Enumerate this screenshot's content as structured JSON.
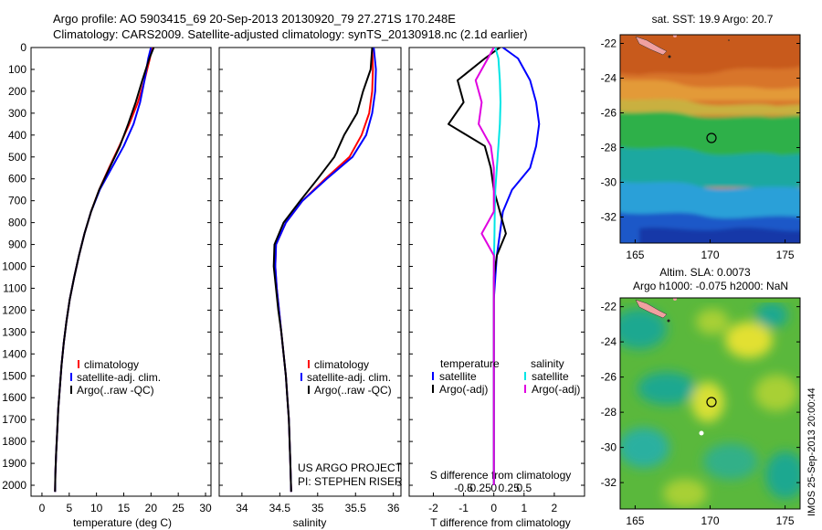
{
  "title": {
    "line1": "Argo profile: AO 5903415_69 20-Sep-2013 20130920_79 27.271S 170.248E",
    "line2": "Climatology: CARS2009. Satellite-adjusted climatology: synTS_20130918.nc (2.1d earlier)"
  },
  "colors": {
    "climatology": "#ff0000",
    "satellite": "#0000ff",
    "argo": "#000000",
    "sal_satellite": "#00e5e5",
    "sal_argo": "#e000e0"
  },
  "depth_axis": {
    "ticks": [
      "0",
      "100",
      "200",
      "300",
      "400",
      "500",
      "600",
      "700",
      "800",
      "900",
      "1000",
      "1100",
      "1200",
      "1300",
      "1400",
      "1500",
      "1600",
      "1700",
      "1800",
      "1900",
      "2000"
    ],
    "ylim": [
      0,
      2050
    ]
  },
  "panels": {
    "temperature": {
      "xlabel": "temperature (deg C)",
      "xticks": [
        "0",
        "5",
        "10",
        "15",
        "20",
        "25",
        "30"
      ],
      "legend": [
        "climatology",
        "satellite-adj. clim.",
        "Argo(..raw -QC)"
      ]
    },
    "salinity": {
      "xlabel": "salinity",
      "xticks": [
        "34",
        "34.5",
        "35",
        "35.5",
        "36"
      ],
      "legend": [
        "climatology",
        "satellite-adj. clim.",
        "Argo(..raw -QC)"
      ],
      "credit1": "US ARGO PROJECT",
      "credit2": "PI: STEPHEN RISER"
    },
    "difference": {
      "xlabel": "T difference from climatology",
      "top_axis_label": "S difference from climatology",
      "xticks": [
        "-2",
        "-1",
        "0",
        "1",
        "2"
      ],
      "top_ticks": [
        "-0.5",
        "-0.25",
        "0",
        "0.25",
        "0.5"
      ],
      "legend_t_title": "temperature",
      "legend_s_title": "salinity",
      "legend_items": [
        "satellite",
        "Argo(-adj)",
        "satellite",
        "Argo(-adj)"
      ]
    }
  },
  "maps": {
    "sst": {
      "title": "sat. SST: 19.9 Argo: 20.7",
      "xticks": [
        "165",
        "170",
        "175"
      ],
      "yticks": [
        "-22",
        "-24",
        "-26",
        "-28",
        "-30",
        "-32"
      ]
    },
    "sla": {
      "title1": "Altim. SLA: 0.0073",
      "title2": "Argo h1000: -0.075 h2000: NaN",
      "xticks": [
        "165",
        "170",
        "175"
      ],
      "yticks": [
        "-22",
        "-24",
        "-26",
        "-28",
        "-30",
        "-32"
      ]
    },
    "stamp": "IMOS 25-Sep-2013 20:00:44"
  },
  "chart_data": [
    {
      "type": "line",
      "title": "",
      "xlabel": "temperature (deg C)",
      "ylabel": "",
      "xlim": [
        -2,
        31
      ],
      "ylim": [
        2050,
        0
      ],
      "x_ticks": [
        0,
        5,
        10,
        15,
        20,
        25,
        30
      ],
      "y_ticks": [
        0,
        100,
        200,
        300,
        400,
        500,
        600,
        700,
        800,
        900,
        1000,
        1100,
        1200,
        1300,
        1400,
        1500,
        1600,
        1700,
        1800,
        1900,
        2000
      ],
      "series": [
        {
          "name": "climatology",
          "x": [
            20.2,
            19.8,
            18.8,
            17.6,
            16.0,
            14.2,
            12.3,
            10.5,
            9.0,
            7.8,
            6.8,
            5.9,
            5.1,
            4.5,
            4.0,
            3.6,
            3.3,
            3.0,
            2.8,
            2.6,
            2.45,
            2.4
          ],
          "y": [
            0,
            50,
            150,
            250,
            350,
            450,
            550,
            650,
            750,
            850,
            950,
            1050,
            1150,
            1250,
            1350,
            1450,
            1550,
            1650,
            1750,
            1850,
            1950,
            2030
          ]
        },
        {
          "name": "satellite-adj. clim.",
          "x": [
            20.0,
            19.5,
            18.8,
            18.0,
            16.8,
            15.0,
            12.8,
            10.6,
            9.0,
            7.8,
            6.8,
            5.9,
            5.1,
            4.5,
            4.0,
            3.6,
            3.3,
            3.0,
            2.8,
            2.6,
            2.45,
            2.4
          ],
          "y": [
            0,
            50,
            150,
            250,
            350,
            450,
            550,
            650,
            750,
            850,
            950,
            1050,
            1150,
            1250,
            1350,
            1450,
            1550,
            1650,
            1750,
            1850,
            1950,
            2030
          ]
        },
        {
          "name": "Argo(..raw -QC)",
          "x": [
            20.5,
            19.7,
            18.4,
            17.2,
            15.8,
            14.3,
            12.4,
            10.5,
            9.0,
            7.8,
            6.8,
            5.9,
            5.1,
            4.5,
            4.0,
            3.6,
            3.3,
            3.0,
            2.8,
            2.6,
            2.45,
            2.4
          ],
          "y": [
            0,
            50,
            150,
            250,
            350,
            450,
            550,
            650,
            750,
            850,
            950,
            1050,
            1150,
            1250,
            1350,
            1450,
            1550,
            1650,
            1750,
            1850,
            1950,
            2030
          ]
        }
      ]
    },
    {
      "type": "line",
      "title": "",
      "xlabel": "salinity",
      "ylabel": "",
      "xlim": [
        33.7,
        36.1
      ],
      "ylim": [
        2050,
        0
      ],
      "x_ticks": [
        34,
        34.5,
        35,
        35.5,
        36
      ],
      "series": [
        {
          "name": "climatology",
          "x": [
            35.72,
            35.73,
            35.72,
            35.68,
            35.58,
            35.42,
            35.1,
            34.8,
            34.58,
            34.45,
            34.44,
            34.46,
            34.49,
            34.52,
            34.55,
            34.58,
            34.6,
            34.62,
            34.63,
            34.64,
            34.65
          ],
          "y": [
            0,
            100,
            200,
            300,
            400,
            500,
            600,
            700,
            800,
            900,
            1000,
            1100,
            1200,
            1300,
            1400,
            1500,
            1600,
            1700,
            1800,
            1900,
            2030
          ]
        },
        {
          "name": "satellite-adj. clim.",
          "x": [
            35.74,
            35.77,
            35.76,
            35.72,
            35.64,
            35.46,
            35.12,
            34.8,
            34.58,
            34.45,
            34.44,
            34.46,
            34.49,
            34.52,
            34.55,
            34.58,
            34.6,
            34.62,
            34.63,
            34.64,
            34.65
          ],
          "y": [
            0,
            100,
            200,
            300,
            400,
            500,
            600,
            700,
            800,
            900,
            1000,
            1100,
            1200,
            1300,
            1400,
            1500,
            1600,
            1700,
            1800,
            1900,
            2030
          ]
        },
        {
          "name": "Argo(..raw -QC)",
          "x": [
            35.72,
            35.7,
            35.6,
            35.52,
            35.35,
            35.22,
            35.0,
            34.77,
            34.55,
            34.43,
            34.42,
            34.45,
            34.48,
            34.52,
            34.55,
            34.58,
            34.6,
            34.62,
            34.63,
            34.64,
            34.65
          ],
          "y": [
            0,
            100,
            200,
            300,
            400,
            500,
            600,
            700,
            800,
            900,
            1000,
            1100,
            1200,
            1300,
            1400,
            1500,
            1600,
            1700,
            1800,
            1900,
            2030
          ]
        }
      ]
    },
    {
      "type": "line",
      "title": "",
      "xlabel": "T difference from climatology",
      "ylabel": "",
      "xlim": [
        -2.8,
        3.0
      ],
      "ylim": [
        2050,
        0
      ],
      "x_ticks": [
        -2,
        -1,
        0,
        1,
        2
      ],
      "series": [
        {
          "name": "satellite",
          "x": [
            0.3,
            0.8,
            1.2,
            1.4,
            1.5,
            1.4,
            1.2,
            0.6,
            0.3,
            0.2,
            0.1,
            0.05,
            0.0,
            0.0,
            0.0,
            0.0,
            0.0,
            0.0,
            0.0,
            0.0,
            0.0
          ],
          "y": [
            0,
            50,
            150,
            250,
            350,
            450,
            550,
            650,
            750,
            850,
            950,
            1050,
            1150,
            1250,
            1350,
            1450,
            1550,
            1650,
            1750,
            1850,
            2000
          ]
        },
        {
          "name": "Argo(-adj)",
          "x": [
            0.2,
            -0.3,
            -1.2,
            -1.0,
            -1.5,
            -0.3,
            -0.1,
            0.0,
            0.2,
            0.4,
            0.1,
            0.0,
            0.0,
            0.0,
            0.0,
            0.0,
            0.0,
            0.0,
            0.0,
            0.0,
            0.0
          ],
          "y": [
            0,
            50,
            150,
            250,
            350,
            450,
            550,
            650,
            750,
            850,
            950,
            1050,
            1150,
            1250,
            1350,
            1450,
            1550,
            1650,
            1750,
            1850,
            2000
          ]
        },
        {
          "name": "satellite",
          "x": [
            0.05,
            0.15,
            0.2,
            0.22,
            0.2,
            0.15,
            0.1,
            0.05,
            0.03,
            0.02,
            0.01,
            0.0,
            0.0,
            0.0,
            0.0,
            0.0,
            0.0,
            0.0,
            0.0,
            0.0,
            0.0
          ],
          "y": [
            0,
            50,
            150,
            250,
            350,
            450,
            550,
            650,
            750,
            850,
            950,
            1050,
            1150,
            1250,
            1350,
            1450,
            1550,
            1650,
            1750,
            1850,
            2000
          ]
        },
        {
          "name": "Argo(-adj)",
          "x": [
            0.0,
            -0.2,
            -0.6,
            -0.4,
            -0.5,
            -0.1,
            0.0,
            0.0,
            0.0,
            -0.4,
            0.0,
            0.0,
            0.0,
            0.0,
            0.0,
            0.0,
            0.0,
            0.0,
            0.0,
            0.0,
            0.0
          ],
          "y": [
            0,
            50,
            150,
            250,
            350,
            450,
            550,
            650,
            750,
            850,
            950,
            1050,
            1150,
            1250,
            1350,
            1450,
            1550,
            1650,
            1750,
            1850,
            2000
          ]
        }
      ]
    },
    {
      "type": "heatmap",
      "title": "sat. SST: 19.9 Argo: 20.7",
      "xlim": [
        164,
        176
      ],
      "ylim": [
        -33.5,
        -21.5
      ],
      "x_ticks": [
        165,
        170,
        175
      ],
      "y_ticks": [
        -22,
        -24,
        -26,
        -28,
        -30,
        -32
      ],
      "argo_location": [
        170.248,
        -27.271
      ]
    },
    {
      "type": "heatmap",
      "title": "Altim. SLA: 0.0073",
      "subtitle": "Argo h1000: -0.075 h2000: NaN",
      "xlim": [
        164,
        176
      ],
      "ylim": [
        -33.5,
        -21.5
      ],
      "x_ticks": [
        165,
        170,
        175
      ],
      "y_ticks": [
        -22,
        -24,
        -26,
        -28,
        -30,
        -32
      ],
      "argo_location": [
        170.248,
        -27.271
      ]
    }
  ]
}
